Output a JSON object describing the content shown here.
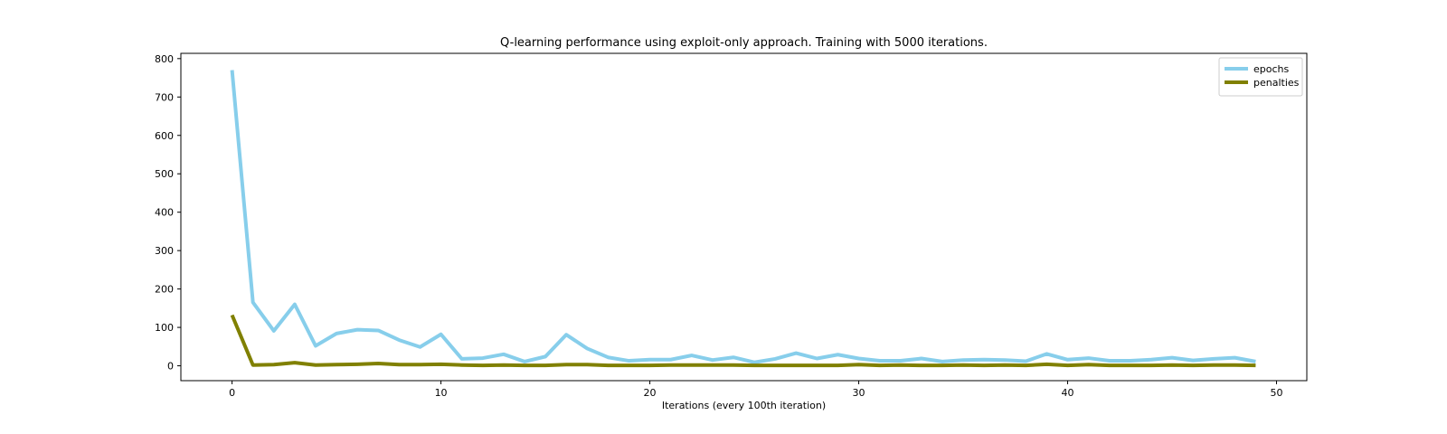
{
  "chart_data": {
    "type": "line",
    "title": "Q-learning performance using exploit-only approach. Training with 5000 iterations.",
    "xlabel": "Iterations (every 100th iteration)",
    "ylabel": "",
    "xlim": [
      -2.45,
      51.45
    ],
    "ylim": [
      -38.7,
      813.7
    ],
    "xticks": [
      0,
      10,
      20,
      30,
      40,
      50
    ],
    "yticks": [
      0,
      100,
      200,
      300,
      400,
      500,
      600,
      700,
      800
    ],
    "grid": false,
    "legend_position": "top-right",
    "x": [
      0,
      1,
      2,
      3,
      4,
      5,
      6,
      7,
      8,
      9,
      10,
      11,
      12,
      13,
      14,
      15,
      16,
      17,
      18,
      19,
      20,
      21,
      22,
      23,
      24,
      25,
      26,
      27,
      28,
      29,
      30,
      31,
      32,
      33,
      34,
      35,
      36,
      37,
      38,
      39,
      40,
      41,
      42,
      43,
      44,
      45,
      46,
      47,
      48,
      49
    ],
    "series": [
      {
        "name": "epochs",
        "color": "#87ceeb",
        "values": [
          770,
          165,
          91,
          160,
          52,
          84,
          94,
          92,
          67,
          49,
          82,
          18,
          20,
          30,
          11,
          24,
          81,
          45,
          22,
          13,
          16,
          16,
          27,
          15,
          22,
          9,
          18,
          33,
          19,
          29,
          19,
          13,
          13,
          19,
          11,
          15,
          16,
          15,
          12,
          31,
          16,
          20,
          13,
          13,
          16,
          21,
          14,
          18,
          21,
          11
        ]
      },
      {
        "name": "penalties",
        "color": "#808000",
        "values": [
          132,
          2,
          3,
          8,
          2,
          3,
          4,
          6,
          3,
          3,
          4,
          2,
          1,
          2,
          1,
          1,
          3,
          3,
          1,
          1,
          1,
          2,
          2,
          2,
          2,
          1,
          1,
          1,
          1,
          1,
          3,
          1,
          2,
          1,
          1,
          2,
          1,
          2,
          1,
          4,
          1,
          3,
          1,
          1,
          1,
          2,
          1,
          2,
          2,
          1
        ]
      }
    ]
  }
}
